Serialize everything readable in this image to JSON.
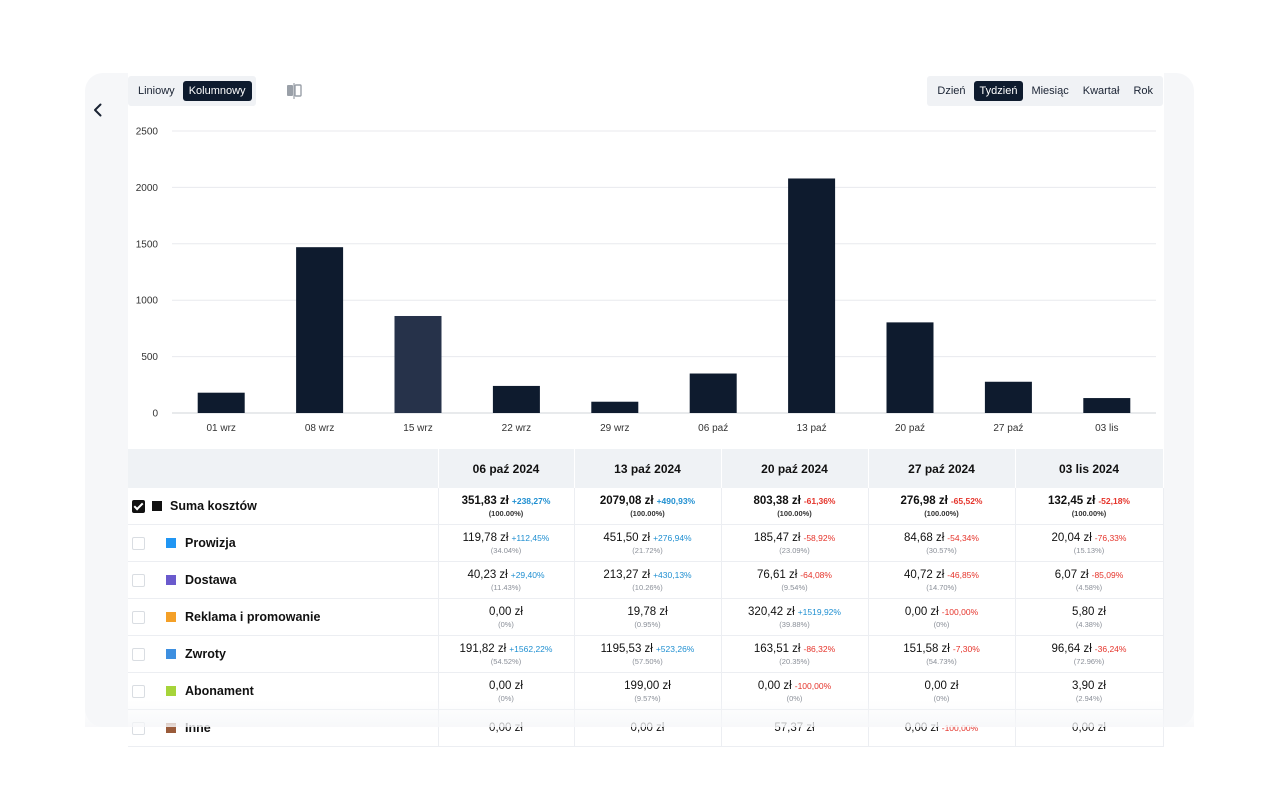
{
  "view_toggle": {
    "options": [
      "Liniowy",
      "Kolumnowy"
    ],
    "active_index": 1
  },
  "period_toggle": {
    "options": [
      "Dzień",
      "Tydzień",
      "Miesiąc",
      "Kwartał",
      "Rok"
    ],
    "active_index": 1
  },
  "icons": {
    "back": "chevron-left-icon",
    "compare": "compare-icon"
  },
  "chart_data": {
    "type": "bar",
    "categories": [
      "01 wrz",
      "08 wrz",
      "15 wrz",
      "22 wrz",
      "29 wrz",
      "06 paź",
      "13 paź",
      "20 paź",
      "27 paź",
      "03 lis"
    ],
    "values": [
      180,
      1470,
      860,
      240,
      100,
      350,
      2079.08,
      803.38,
      276.98,
      132.45
    ],
    "yticks": [
      0,
      500,
      1000,
      1500,
      2000,
      2500
    ],
    "ylim": [
      0,
      2500
    ],
    "grid": true,
    "bar_color": "#0e1b2e",
    "highlight_index": 2,
    "highlight_color": "#26324a"
  },
  "table": {
    "columns": [
      "06 paź 2024",
      "13 paź 2024",
      "20 paź 2024",
      "27 paź 2024",
      "03 lis 2024"
    ],
    "rows": [
      {
        "label": "Suma kosztów",
        "color": "#111111",
        "checked": true,
        "is_sum": true,
        "cells": [
          {
            "value": "351,83 zł",
            "change": "+238,27%",
            "dir": "pos",
            "share": "(100.00%)"
          },
          {
            "value": "2079,08 zł",
            "change": "+490,93%",
            "dir": "pos",
            "share": "(100.00%)"
          },
          {
            "value": "803,38 zł",
            "change": "-61,36%",
            "dir": "neg",
            "share": "(100.00%)"
          },
          {
            "value": "276,98 zł",
            "change": "-65,52%",
            "dir": "neg",
            "share": "(100.00%)"
          },
          {
            "value": "132,45 zł",
            "change": "-52,18%",
            "dir": "neg",
            "share": "(100.00%)"
          }
        ]
      },
      {
        "label": "Prowizja",
        "color": "#2196f3",
        "checked": false,
        "cells": [
          {
            "value": "119,78 zł",
            "change": "+112,45%",
            "dir": "pos",
            "share": "(34.04%)"
          },
          {
            "value": "451,50 zł",
            "change": "+276,94%",
            "dir": "pos",
            "share": "(21.72%)"
          },
          {
            "value": "185,47 zł",
            "change": "-58,92%",
            "dir": "neg",
            "share": "(23.09%)"
          },
          {
            "value": "84,68 zł",
            "change": "-54,34%",
            "dir": "neg",
            "share": "(30.57%)"
          },
          {
            "value": "20,04 zł",
            "change": "-76,33%",
            "dir": "neg",
            "share": "(15.13%)"
          }
        ]
      },
      {
        "label": "Dostawa",
        "color": "#6a5acd",
        "checked": false,
        "cells": [
          {
            "value": "40,23 zł",
            "change": "+29,40%",
            "dir": "pos",
            "share": "(11.43%)"
          },
          {
            "value": "213,27 zł",
            "change": "+430,13%",
            "dir": "pos",
            "share": "(10.26%)"
          },
          {
            "value": "76,61 zł",
            "change": "-64,08%",
            "dir": "neg",
            "share": "(9.54%)"
          },
          {
            "value": "40,72 zł",
            "change": "-46,85%",
            "dir": "neg",
            "share": "(14.70%)"
          },
          {
            "value": "6,07 zł",
            "change": "-85,09%",
            "dir": "neg",
            "share": "(4.58%)"
          }
        ]
      },
      {
        "label": "Reklama i promowanie",
        "color": "#f4a028",
        "checked": false,
        "cells": [
          {
            "value": "0,00 zł",
            "change": "",
            "dir": "",
            "share": "(0%)"
          },
          {
            "value": "19,78 zł",
            "change": "",
            "dir": "",
            "share": "(0.95%)"
          },
          {
            "value": "320,42 zł",
            "change": "+1519,92%",
            "dir": "pos",
            "share": "(39.88%)"
          },
          {
            "value": "0,00 zł",
            "change": "-100,00%",
            "dir": "neg",
            "share": "(0%)"
          },
          {
            "value": "5,80 zł",
            "change": "",
            "dir": "",
            "share": "(4.38%)"
          }
        ]
      },
      {
        "label": "Zwroty",
        "color": "#3d8fe0",
        "checked": false,
        "cells": [
          {
            "value": "191,82 zł",
            "change": "+1562,22%",
            "dir": "pos",
            "share": "(54.52%)"
          },
          {
            "value": "1195,53 zł",
            "change": "+523,26%",
            "dir": "pos",
            "share": "(57.50%)"
          },
          {
            "value": "163,51 zł",
            "change": "-86,32%",
            "dir": "neg",
            "share": "(20.35%)"
          },
          {
            "value": "151,58 zł",
            "change": "-7,30%",
            "dir": "neg",
            "share": "(54.73%)"
          },
          {
            "value": "96,64 zł",
            "change": "-36,24%",
            "dir": "neg",
            "share": "(72.96%)"
          }
        ]
      },
      {
        "label": "Abonament",
        "color": "#a6d43a",
        "checked": false,
        "cells": [
          {
            "value": "0,00 zł",
            "change": "",
            "dir": "",
            "share": "(0%)"
          },
          {
            "value": "199,00 zł",
            "change": "",
            "dir": "",
            "share": "(9.57%)"
          },
          {
            "value": "0,00 zł",
            "change": "-100,00%",
            "dir": "neg",
            "share": "(0%)"
          },
          {
            "value": "0,00 zł",
            "change": "",
            "dir": "",
            "share": "(0%)"
          },
          {
            "value": "3,90 zł",
            "change": "",
            "dir": "",
            "share": "(2.94%)"
          }
        ]
      },
      {
        "label": "Inne",
        "color": "#9a5b3a",
        "checked": false,
        "cells": [
          {
            "value": "0,00 zł",
            "change": "",
            "dir": "",
            "share": ""
          },
          {
            "value": "0,00 zł",
            "change": "",
            "dir": "",
            "share": ""
          },
          {
            "value": "57,37 zł",
            "change": "",
            "dir": "",
            "share": ""
          },
          {
            "value": "0,00 zł",
            "change": "-100,00%",
            "dir": "neg",
            "share": ""
          },
          {
            "value": "0,00 zł",
            "change": "",
            "dir": "",
            "share": ""
          }
        ]
      }
    ]
  }
}
